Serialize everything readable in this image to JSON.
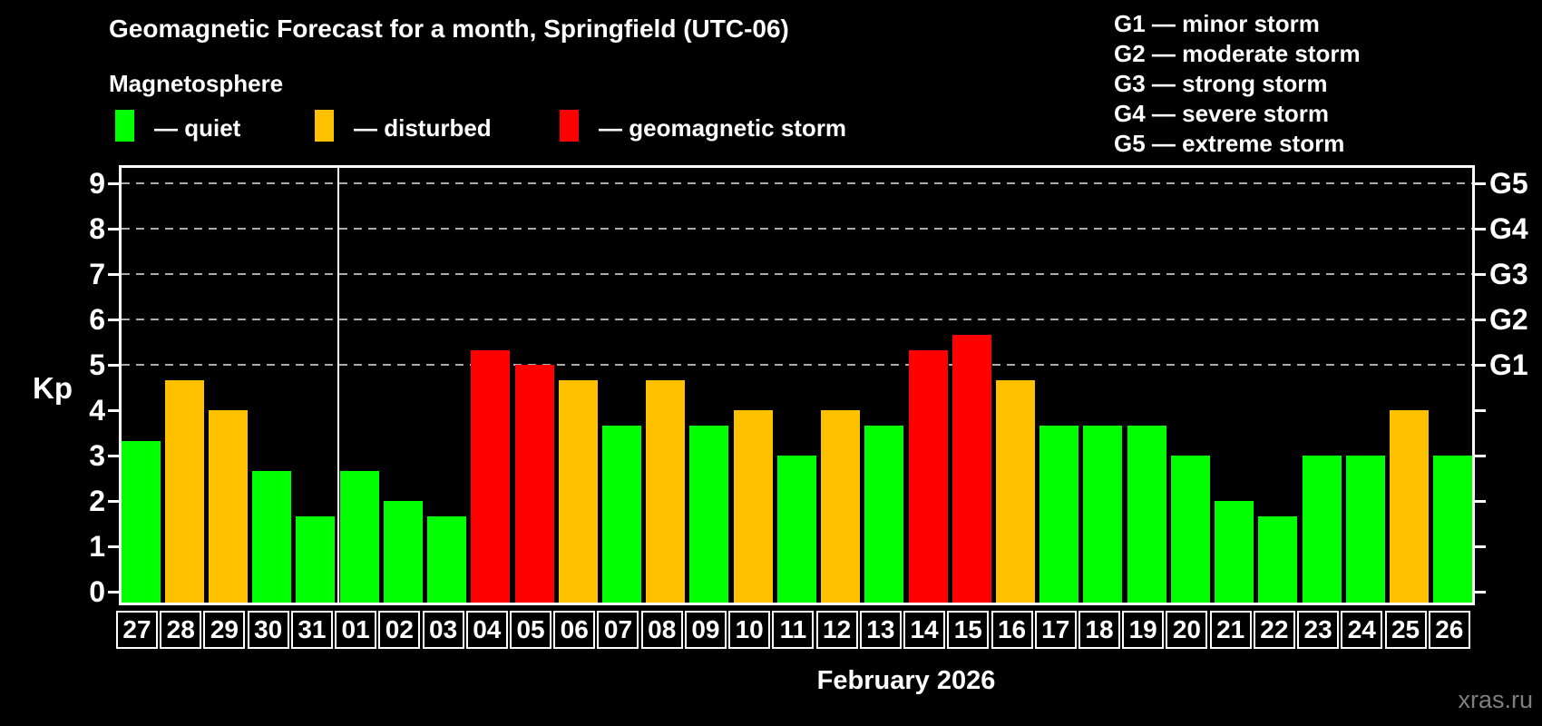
{
  "title": "Geomagnetic Forecast for a month, Springfield (UTC-06)",
  "subtitle": "Magnetosphere",
  "series_legend": [
    {
      "label": "— quiet",
      "status": "quiet",
      "color": "#00ff00"
    },
    {
      "label": "— disturbed",
      "status": "disturbed",
      "color": "#ffc000"
    },
    {
      "label": "— geomagnetic storm",
      "status": "storm",
      "color": "#ff0000"
    }
  ],
  "storm_scale_legend": [
    "G1 — minor storm",
    "G2 — moderate storm",
    "G3 — strong storm",
    "G4 — severe storm",
    "G5 — extreme storm"
  ],
  "footer": {
    "x_axis_title": "February 2026",
    "watermark": "xras.ru"
  },
  "chart_data": {
    "type": "bar",
    "title": "Geomagnetic Forecast for a month, Springfield (UTC-06)",
    "ylabel": "Kp",
    "xlabel": "February 2026",
    "ylim": [
      -0.3,
      9.4
    ],
    "y_ticks": [
      0,
      1,
      2,
      3,
      4,
      5,
      6,
      7,
      8,
      9
    ],
    "right_axis_labels": [
      {
        "label": "G1",
        "kp": 5
      },
      {
        "label": "G2",
        "kp": 6
      },
      {
        "label": "G3",
        "kp": 7
      },
      {
        "label": "G4",
        "kp": 8
      },
      {
        "label": "G5",
        "kp": 9
      }
    ],
    "gridlines_kp": [
      5,
      6,
      7,
      8,
      9
    ],
    "grid": "horizontal dashed at G1–G5 levels",
    "legend_position": "top",
    "month_boundary_index": 5,
    "categories": [
      "27",
      "28",
      "29",
      "30",
      "31",
      "01",
      "02",
      "03",
      "04",
      "05",
      "06",
      "07",
      "08",
      "09",
      "10",
      "11",
      "12",
      "13",
      "14",
      "15",
      "16",
      "17",
      "18",
      "19",
      "20",
      "21",
      "22",
      "23",
      "24",
      "25",
      "26"
    ],
    "values": [
      3.33,
      4.67,
      4.0,
      2.67,
      1.67,
      2.67,
      2.0,
      1.67,
      5.33,
      5.0,
      4.67,
      3.67,
      4.67,
      3.67,
      4.0,
      3.0,
      4.0,
      3.67,
      5.33,
      5.67,
      4.67,
      3.67,
      3.67,
      3.67,
      3.0,
      2.0,
      1.67,
      3.0,
      3.0,
      4.0,
      3.0
    ],
    "statuses": [
      "quiet",
      "disturbed",
      "disturbed",
      "quiet",
      "quiet",
      "quiet",
      "quiet",
      "quiet",
      "storm",
      "storm",
      "disturbed",
      "quiet",
      "disturbed",
      "quiet",
      "disturbed",
      "quiet",
      "disturbed",
      "quiet",
      "storm",
      "storm",
      "disturbed",
      "quiet",
      "quiet",
      "quiet",
      "quiet",
      "quiet",
      "quiet",
      "quiet",
      "quiet",
      "disturbed",
      "quiet"
    ],
    "colors": {
      "quiet": "#00ff00",
      "disturbed": "#ffc000",
      "storm": "#ff0000"
    }
  }
}
